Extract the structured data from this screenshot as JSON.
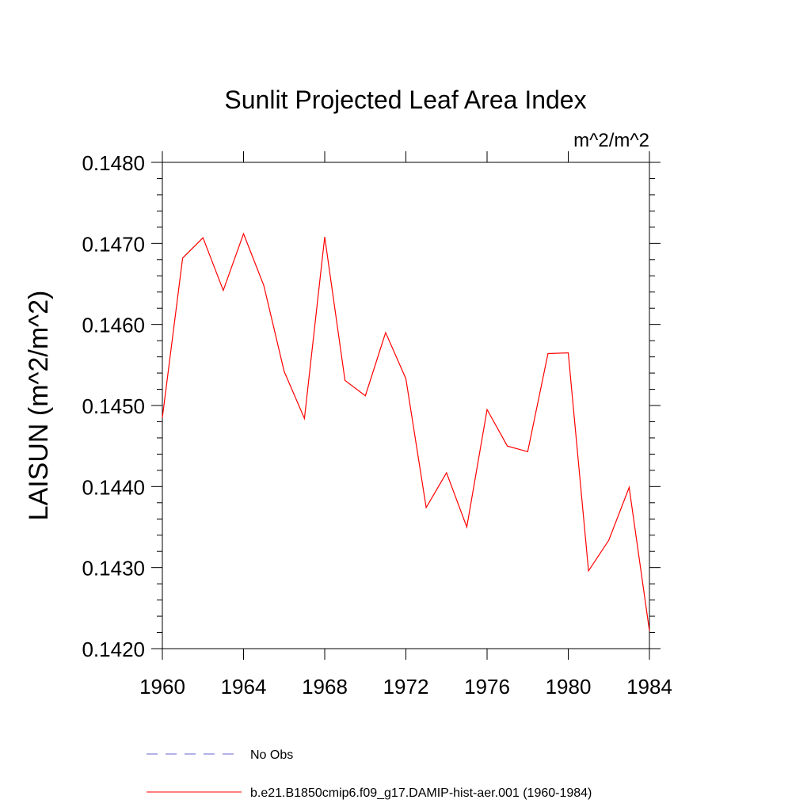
{
  "chart_data": {
    "type": "line",
    "title": "Sunlit Projected Leaf Area Index",
    "units_label": "m^2/m^2",
    "ylabel": "LAISUN  (m^2/m^2)",
    "xlabel": "",
    "xlim": [
      1960,
      1984
    ],
    "ylim": [
      0.142,
      0.148
    ],
    "x_ticks": [
      1960,
      1964,
      1968,
      1972,
      1976,
      1980,
      1984
    ],
    "x_tick_labels": [
      "1960",
      "1964",
      "1968",
      "1972",
      "1976",
      "1980",
      "1984"
    ],
    "y_ticks": [
      0.142,
      0.143,
      0.144,
      0.145,
      0.146,
      0.147,
      0.148
    ],
    "y_tick_labels": [
      "0.1420",
      "0.1430",
      "0.1440",
      "0.1450",
      "0.1460",
      "0.1470",
      "0.1480"
    ],
    "grid": false,
    "legend_placement": "bottom",
    "series": [
      {
        "name": "b.e21.B1850cmip6.f09_g17.DAMIP-hist-aer.001 (1960-1984)",
        "color": "#ff0000",
        "style": "solid",
        "x": [
          1960,
          1961,
          1962,
          1963,
          1964,
          1965,
          1966,
          1967,
          1968,
          1969,
          1970,
          1971,
          1972,
          1973,
          1974,
          1975,
          1976,
          1977,
          1978,
          1979,
          1980,
          1981,
          1982,
          1983,
          1984
        ],
        "y": [
          0.14485,
          0.14682,
          0.14707,
          0.14642,
          0.14712,
          0.14648,
          0.14542,
          0.14484,
          0.14708,
          0.14531,
          0.14512,
          0.1459,
          0.14533,
          0.14374,
          0.14417,
          0.1435,
          0.14495,
          0.1445,
          0.14443,
          0.14564,
          0.14565,
          0.14296,
          0.14334,
          0.14399,
          0.14222
        ]
      }
    ],
    "legend": [
      {
        "label": "No Obs",
        "color": "#6666cc",
        "style": "dashed"
      },
      {
        "label": "b.e21.B1850cmip6.f09_g17.DAMIP-hist-aer.001 (1960-1984)",
        "color": "#ff0000",
        "style": "solid"
      }
    ]
  }
}
